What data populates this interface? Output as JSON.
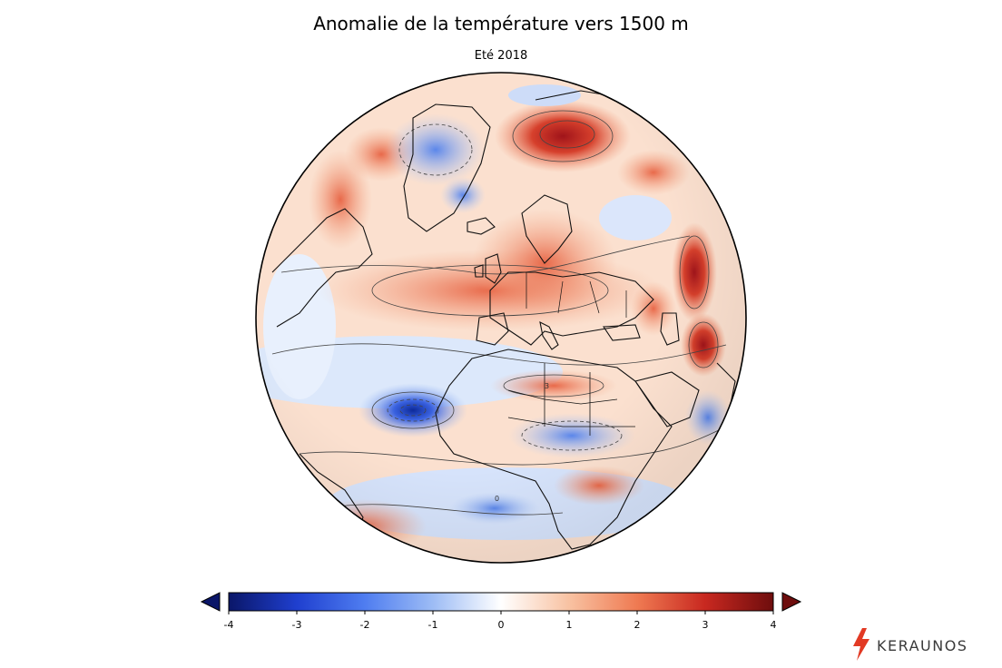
{
  "title": "Anomalie de la température vers 1500 m",
  "subtitle": "Eté 2018",
  "colorbar": {
    "ticks": [
      "-4",
      "-3",
      "-2",
      "-1",
      "0",
      "1",
      "2",
      "3",
      "4"
    ],
    "min": -4,
    "max": 4,
    "colors": [
      "#0a1668",
      "#1f3fcf",
      "#4f7df0",
      "#9dbcf5",
      "#ffffff",
      "#f8c2a2",
      "#ef7a52",
      "#c82820",
      "#6e0d0d"
    ],
    "extend": "both"
  },
  "map": {
    "projection": "orthographic",
    "center": "Europe / Africa",
    "scale_label": "3",
    "zero_label": "0"
  },
  "brand": {
    "name": "KERAUNOS",
    "accent": "#e23a24"
  }
}
